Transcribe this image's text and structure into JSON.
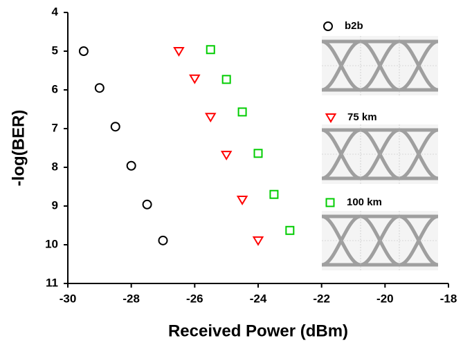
{
  "chart_data": {
    "type": "scatter",
    "x_label": "Received Power (dBm)",
    "y_label": "-log(BER)",
    "xlim": [
      -30,
      -18
    ],
    "xticks": [
      -30,
      -28,
      -26,
      -24,
      -22,
      -20,
      -18
    ],
    "ylim": [
      4,
      11
    ],
    "yticks": [
      4,
      5,
      6,
      7,
      8,
      9,
      10,
      11
    ],
    "y_reversed": true,
    "series": [
      {
        "name": "b2b",
        "color": "#000000",
        "marker": "circle",
        "x": [
          -29.5,
          -29,
          -28.5,
          -28,
          -27.5,
          -27
        ],
        "values": [
          5.0,
          5.95,
          6.95,
          7.96,
          8.96,
          9.89
        ]
      },
      {
        "name": "75 km",
        "color": "#ff0000",
        "marker": "triangle-down",
        "x": [
          -26.5,
          -26,
          -25.5,
          -25,
          -24.5,
          -24
        ],
        "values": [
          5.0,
          5.71,
          6.7,
          7.68,
          8.84,
          9.89
        ]
      },
      {
        "name": "100 km",
        "color": "#00cc00",
        "marker": "square",
        "x": [
          -25.5,
          -25,
          -24.5,
          -24,
          -23.5,
          -23
        ],
        "values": [
          4.96,
          5.73,
          6.57,
          7.64,
          8.7,
          9.63
        ]
      }
    ]
  }
}
